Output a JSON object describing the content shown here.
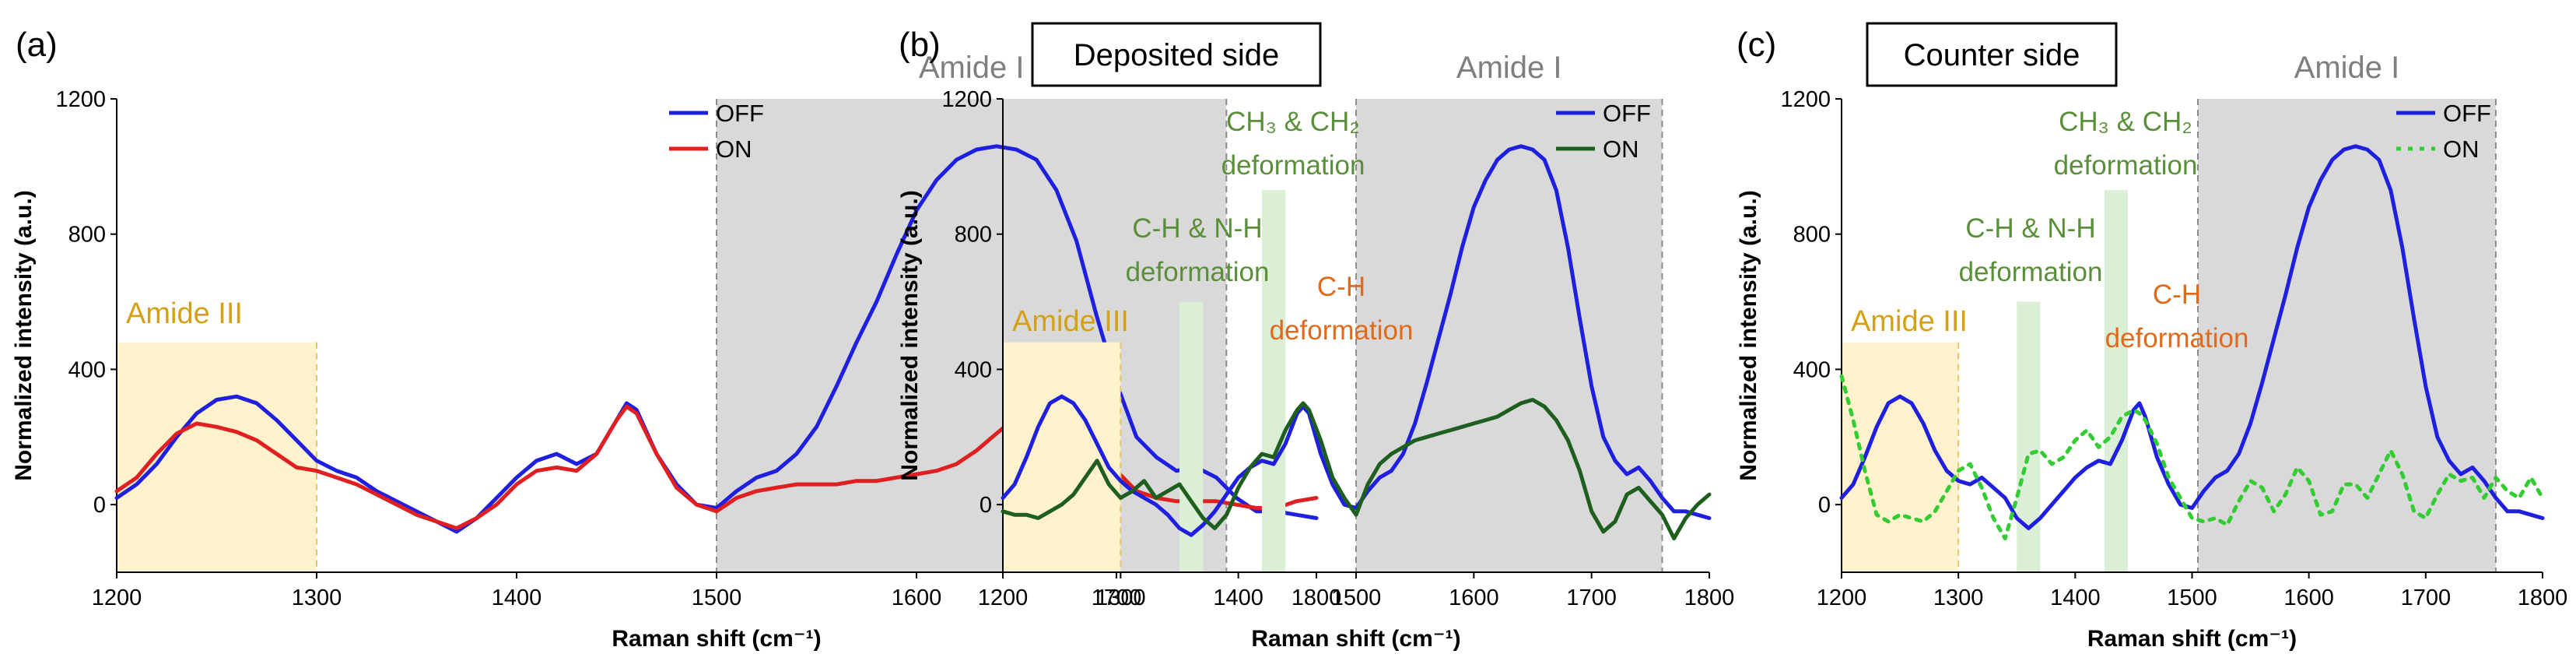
{
  "chart_data": [
    {
      "panel": "(a)",
      "type": "line",
      "xlabel": "Raman shift (cm⁻¹)",
      "ylabel": "Normalized intensity (a.u.)",
      "xlim": [
        1200,
        1800
      ],
      "ylim": [
        -200,
        1200
      ],
      "xticks": [
        1200,
        1300,
        1400,
        1500,
        1600,
        1700,
        1800
      ],
      "yticks": [
        0,
        400,
        800,
        1200
      ],
      "legend_position": "top-right",
      "regions": [
        {
          "label": "Amide III",
          "x": [
            1200,
            1300
          ],
          "y": [
            -200,
            480
          ],
          "color": "#fff2cc",
          "edge": "#e6c46a",
          "text_color": "#d4a017"
        },
        {
          "label": "Amide I",
          "x": [
            1500,
            1755
          ],
          "y": [
            -200,
            1200
          ],
          "color": "#d9d9d9",
          "edge": "#8c8c8c",
          "text_color": "#7f7f7f"
        }
      ],
      "annotations": [],
      "series": [
        {
          "name": "OFF",
          "color": "#1f1fdf",
          "dash": "solid",
          "x": [
            1200,
            1210,
            1220,
            1230,
            1240,
            1250,
            1260,
            1270,
            1280,
            1290,
            1300,
            1310,
            1320,
            1330,
            1340,
            1350,
            1360,
            1370,
            1380,
            1390,
            1400,
            1410,
            1420,
            1430,
            1440,
            1450,
            1455,
            1460,
            1470,
            1480,
            1490,
            1500,
            1510,
            1520,
            1530,
            1540,
            1550,
            1560,
            1570,
            1580,
            1590,
            1600,
            1610,
            1620,
            1630,
            1640,
            1650,
            1660,
            1670,
            1680,
            1690,
            1700,
            1710,
            1720,
            1730,
            1740,
            1750,
            1760,
            1770,
            1780,
            1790,
            1800
          ],
          "y": [
            20,
            60,
            120,
            200,
            270,
            310,
            320,
            300,
            250,
            190,
            130,
            100,
            80,
            40,
            10,
            -20,
            -50,
            -80,
            -40,
            20,
            80,
            130,
            150,
            120,
            150,
            250,
            300,
            280,
            150,
            60,
            0,
            -10,
            40,
            80,
            100,
            150,
            230,
            350,
            480,
            600,
            740,
            870,
            960,
            1020,
            1050,
            1060,
            1050,
            1020,
            930,
            780,
            560,
            360,
            200,
            140,
            100,
            110,
            80,
            20,
            -20,
            -20,
            -30,
            -40
          ]
        },
        {
          "name": "ON",
          "color": "#e02020",
          "dash": "solid",
          "x": [
            1200,
            1210,
            1220,
            1230,
            1240,
            1250,
            1260,
            1270,
            1280,
            1290,
            1300,
            1310,
            1320,
            1330,
            1340,
            1350,
            1360,
            1370,
            1380,
            1390,
            1400,
            1410,
            1420,
            1430,
            1440,
            1450,
            1455,
            1460,
            1470,
            1480,
            1490,
            1500,
            1510,
            1520,
            1530,
            1540,
            1550,
            1560,
            1570,
            1580,
            1590,
            1600,
            1610,
            1620,
            1630,
            1640,
            1650,
            1660,
            1670,
            1680,
            1690,
            1700,
            1710,
            1720,
            1730,
            1740,
            1750,
            1760,
            1770,
            1780,
            1790,
            1800
          ],
          "y": [
            40,
            80,
            150,
            210,
            240,
            230,
            215,
            190,
            150,
            110,
            100,
            80,
            60,
            30,
            0,
            -30,
            -50,
            -70,
            -40,
            0,
            60,
            100,
            110,
            100,
            150,
            250,
            290,
            270,
            150,
            50,
            0,
            -20,
            20,
            40,
            50,
            60,
            60,
            60,
            70,
            70,
            80,
            90,
            100,
            120,
            160,
            210,
            260,
            290,
            280,
            250,
            180,
            100,
            40,
            20,
            10,
            10,
            10,
            0,
            -10,
            -10,
            10,
            20
          ]
        }
      ]
    },
    {
      "panel": "(b)",
      "type": "line",
      "title": "Deposited side",
      "xlabel": "Raman shift (cm⁻¹)",
      "ylabel": "Normalized intensity (a.u.)",
      "xlim": [
        1200,
        1800
      ],
      "ylim": [
        -200,
        1200
      ],
      "xticks": [
        1200,
        1300,
        1400,
        1500,
        1600,
        1700,
        1800
      ],
      "yticks": [
        0,
        400,
        800,
        1200
      ],
      "legend_position": "top-right",
      "regions": [
        {
          "label": "Amide III",
          "x": [
            1200,
            1300
          ],
          "y": [
            -200,
            480
          ],
          "color": "#fff2cc",
          "edge": "#e6c46a",
          "text_color": "#d4a017"
        },
        {
          "label": "",
          "x": [
            1350,
            1370
          ],
          "y": [
            -200,
            600
          ],
          "color": "#dbeed6",
          "edge": "none",
          "text_color": ""
        },
        {
          "label": "",
          "x": [
            1420,
            1440
          ],
          "y": [
            -200,
            930
          ],
          "color": "#dbeed6",
          "edge": "none",
          "text_color": ""
        },
        {
          "label": "Amide I",
          "x": [
            1500,
            1760
          ],
          "y": [
            -200,
            1200
          ],
          "color": "#d9d9d9",
          "edge": "#8c8c8c",
          "text_color": "#7f7f7f"
        }
      ],
      "annotations": [
        {
          "lines": [
            "C-H & N-H",
            "deformation"
          ],
          "color": "#5a8f3a"
        },
        {
          "lines": [
            "CH₃ & CH₂",
            "deformation"
          ],
          "color": "#5a8f3a"
        },
        {
          "lines": [
            "C-H",
            "deformation"
          ],
          "color": "#e06a1c"
        }
      ],
      "series": [
        {
          "name": "OFF",
          "color": "#1f1fdf",
          "dash": "solid",
          "x": [
            1200,
            1210,
            1220,
            1230,
            1240,
            1250,
            1260,
            1270,
            1280,
            1290,
            1300,
            1310,
            1320,
            1330,
            1340,
            1350,
            1360,
            1370,
            1380,
            1390,
            1400,
            1410,
            1420,
            1430,
            1440,
            1450,
            1455,
            1460,
            1470,
            1480,
            1490,
            1500,
            1510,
            1520,
            1530,
            1540,
            1550,
            1560,
            1570,
            1580,
            1590,
            1600,
            1610,
            1620,
            1630,
            1640,
            1650,
            1660,
            1670,
            1680,
            1690,
            1700,
            1710,
            1720,
            1730,
            1740,
            1750,
            1760,
            1770,
            1780,
            1790,
            1800
          ],
          "y": [
            20,
            60,
            140,
            230,
            300,
            320,
            300,
            250,
            180,
            110,
            70,
            40,
            20,
            0,
            -30,
            -70,
            -90,
            -60,
            -20,
            30,
            80,
            110,
            130,
            120,
            180,
            270,
            290,
            270,
            150,
            60,
            0,
            -10,
            40,
            80,
            100,
            150,
            240,
            360,
            490,
            620,
            760,
            880,
            960,
            1020,
            1050,
            1060,
            1050,
            1020,
            930,
            760,
            550,
            350,
            200,
            130,
            90,
            110,
            70,
            20,
            -20,
            -20,
            -30,
            -40
          ]
        },
        {
          "name": "ON",
          "color": "#1e5e1e",
          "dash": "solid",
          "x": [
            1200,
            1210,
            1220,
            1230,
            1240,
            1250,
            1260,
            1270,
            1280,
            1290,
            1300,
            1310,
            1320,
            1330,
            1340,
            1350,
            1360,
            1370,
            1380,
            1390,
            1400,
            1410,
            1420,
            1430,
            1440,
            1450,
            1455,
            1460,
            1470,
            1480,
            1490,
            1500,
            1510,
            1520,
            1530,
            1540,
            1550,
            1560,
            1570,
            1580,
            1590,
            1600,
            1610,
            1620,
            1630,
            1640,
            1650,
            1660,
            1670,
            1680,
            1690,
            1700,
            1710,
            1720,
            1730,
            1740,
            1750,
            1760,
            1770,
            1780,
            1790,
            1800
          ],
          "y": [
            -20,
            -30,
            -30,
            -40,
            -20,
            0,
            30,
            80,
            130,
            60,
            20,
            40,
            70,
            20,
            40,
            60,
            10,
            -40,
            -70,
            -30,
            50,
            110,
            150,
            140,
            220,
            280,
            300,
            280,
            190,
            80,
            20,
            -30,
            60,
            120,
            150,
            170,
            190,
            200,
            210,
            220,
            230,
            240,
            250,
            260,
            280,
            300,
            310,
            290,
            250,
            190,
            100,
            -20,
            -80,
            -50,
            30,
            50,
            10,
            -30,
            -100,
            -40,
            0,
            30
          ]
        }
      ]
    },
    {
      "panel": "(c)",
      "type": "line",
      "title": "Counter side",
      "xlabel": "Raman shift (cm⁻¹)",
      "ylabel": "Normalized intensity (a.u.)",
      "xlim": [
        1200,
        1800
      ],
      "ylim": [
        -200,
        1200
      ],
      "xticks": [
        1200,
        1300,
        1400,
        1500,
        1600,
        1700,
        1800
      ],
      "yticks": [
        0,
        400,
        800,
        1200
      ],
      "legend_position": "top-right",
      "regions": [
        {
          "label": "Amide III",
          "x": [
            1200,
            1300
          ],
          "y": [
            -200,
            480
          ],
          "color": "#fff2cc",
          "edge": "#e6c46a",
          "text_color": "#d4a017"
        },
        {
          "label": "",
          "x": [
            1350,
            1370
          ],
          "y": [
            -200,
            600
          ],
          "color": "#dbeed6",
          "edge": "none",
          "text_color": ""
        },
        {
          "label": "",
          "x": [
            1425,
            1445
          ],
          "y": [
            -200,
            930
          ],
          "color": "#dbeed6",
          "edge": "none",
          "text_color": ""
        },
        {
          "label": "Amide I",
          "x": [
            1505,
            1760
          ],
          "y": [
            -200,
            1200
          ],
          "color": "#d9d9d9",
          "edge": "#8c8c8c",
          "text_color": "#7f7f7f"
        }
      ],
      "annotations": [
        {
          "lines": [
            "C-H & N-H",
            "deformation"
          ],
          "color": "#5a8f3a"
        },
        {
          "lines": [
            "CH₃ & CH₂",
            "deformation"
          ],
          "color": "#5a8f3a"
        },
        {
          "lines": [
            "C-H",
            "deformation"
          ],
          "color": "#e06a1c"
        }
      ],
      "series": [
        {
          "name": "OFF",
          "color": "#1f1fdf",
          "dash": "solid",
          "x": [
            1200,
            1210,
            1220,
            1230,
            1240,
            1250,
            1260,
            1270,
            1280,
            1290,
            1300,
            1310,
            1320,
            1330,
            1340,
            1350,
            1360,
            1370,
            1380,
            1390,
            1400,
            1410,
            1420,
            1430,
            1440,
            1450,
            1455,
            1460,
            1470,
            1480,
            1490,
            1500,
            1510,
            1520,
            1530,
            1540,
            1550,
            1560,
            1570,
            1580,
            1590,
            1600,
            1610,
            1620,
            1630,
            1640,
            1650,
            1660,
            1670,
            1680,
            1690,
            1700,
            1710,
            1720,
            1730,
            1740,
            1750,
            1760,
            1770,
            1780,
            1790,
            1800
          ],
          "y": [
            20,
            60,
            140,
            230,
            300,
            320,
            300,
            240,
            160,
            100,
            70,
            60,
            80,
            50,
            20,
            -40,
            -70,
            -40,
            0,
            40,
            80,
            110,
            130,
            120,
            190,
            280,
            300,
            260,
            140,
            60,
            0,
            -10,
            40,
            80,
            100,
            150,
            240,
            360,
            490,
            620,
            760,
            880,
            960,
            1020,
            1050,
            1060,
            1050,
            1020,
            930,
            760,
            550,
            350,
            200,
            130,
            90,
            110,
            70,
            20,
            -20,
            -20,
            -30,
            -40
          ]
        },
        {
          "name": "ON",
          "color": "#33cc33",
          "dash": "dotted",
          "x": [
            1200,
            1210,
            1220,
            1230,
            1240,
            1250,
            1260,
            1270,
            1280,
            1290,
            1300,
            1310,
            1320,
            1330,
            1340,
            1350,
            1360,
            1370,
            1380,
            1390,
            1400,
            1410,
            1420,
            1430,
            1440,
            1450,
            1455,
            1460,
            1470,
            1480,
            1490,
            1500,
            1510,
            1520,
            1530,
            1540,
            1550,
            1560,
            1570,
            1580,
            1590,
            1600,
            1610,
            1620,
            1630,
            1640,
            1650,
            1660,
            1670,
            1680,
            1690,
            1700,
            1710,
            1720,
            1730,
            1740,
            1750,
            1760,
            1770,
            1780,
            1790,
            1800
          ],
          "y": [
            380,
            250,
            100,
            -30,
            -50,
            -30,
            -40,
            -50,
            -20,
            40,
            100,
            120,
            50,
            -40,
            -100,
            20,
            150,
            160,
            120,
            140,
            190,
            220,
            170,
            200,
            260,
            280,
            270,
            250,
            180,
            80,
            20,
            -40,
            -50,
            -40,
            -60,
            10,
            70,
            50,
            -20,
            30,
            110,
            70,
            -30,
            -20,
            60,
            60,
            20,
            90,
            160,
            90,
            -20,
            -40,
            30,
            90,
            70,
            80,
            20,
            80,
            40,
            20,
            80,
            20
          ]
        }
      ]
    }
  ]
}
